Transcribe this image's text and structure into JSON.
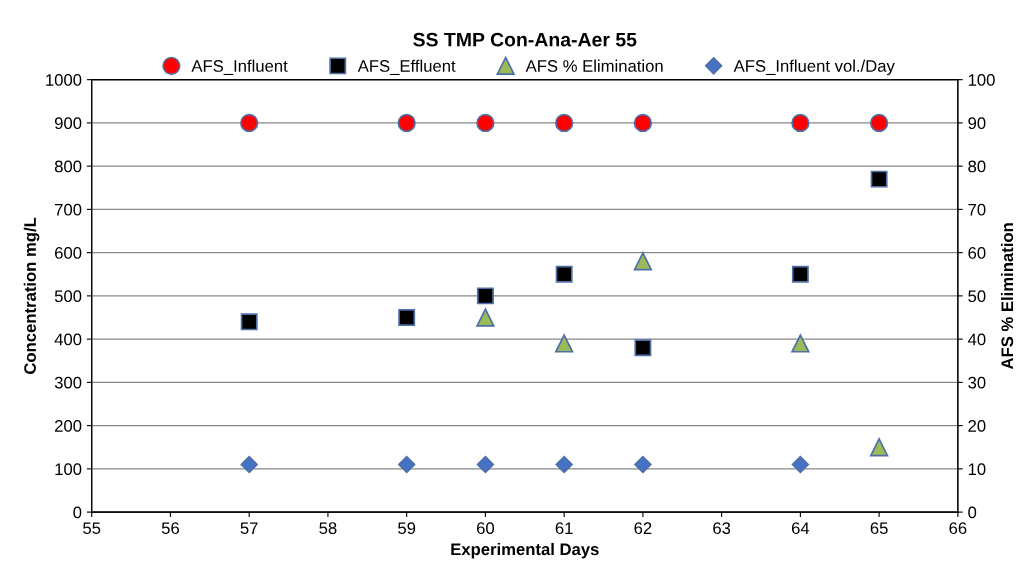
{
  "chart_data": {
    "type": "scatter",
    "title": "SS TMP Con-Ana-Aer 55",
    "xlabel": "Experimental Days",
    "ylabel": "Concentration mg/L",
    "y2label": "AFS % Elimination",
    "xlim": [
      55,
      66
    ],
    "xticks": [
      55,
      56,
      57,
      58,
      59,
      60,
      61,
      62,
      63,
      64,
      65,
      66
    ],
    "ylim": [
      0,
      1000
    ],
    "yticks": [
      0,
      100,
      200,
      300,
      400,
      500,
      600,
      700,
      800,
      900,
      1000
    ],
    "y2lim": [
      0,
      100
    ],
    "y2ticks": [
      0,
      10,
      20,
      30,
      40,
      50,
      60,
      70,
      80,
      90,
      100
    ],
    "grid": "y",
    "legend": "top",
    "series": [
      {
        "name": "AFS_Influent",
        "color": "#ff0000",
        "marker": "circle",
        "x": [
          57,
          59,
          60,
          61,
          62,
          64,
          65
        ],
        "values": [
          900,
          900,
          900,
          900,
          900,
          900,
          900
        ]
      },
      {
        "name": "AFS_Effluent",
        "color": "#000000",
        "marker": "square",
        "x": [
          57,
          59,
          60,
          61,
          62,
          64,
          65
        ],
        "values": [
          440,
          450,
          500,
          550,
          380,
          550,
          770
        ]
      },
      {
        "name": "AFS % Elimination",
        "color": "#9bbb59",
        "marker": "triangle",
        "axis": "y2",
        "x": [
          60,
          61,
          62,
          64,
          65
        ],
        "values": [
          45,
          39,
          58,
          39,
          15
        ]
      },
      {
        "name": "AFS_Influent vol./Day",
        "color": "#4472c4",
        "marker": "diamond",
        "x": [
          57,
          59,
          60,
          61,
          62,
          64
        ],
        "values": [
          110,
          110,
          110,
          110,
          110,
          110
        ]
      }
    ]
  }
}
